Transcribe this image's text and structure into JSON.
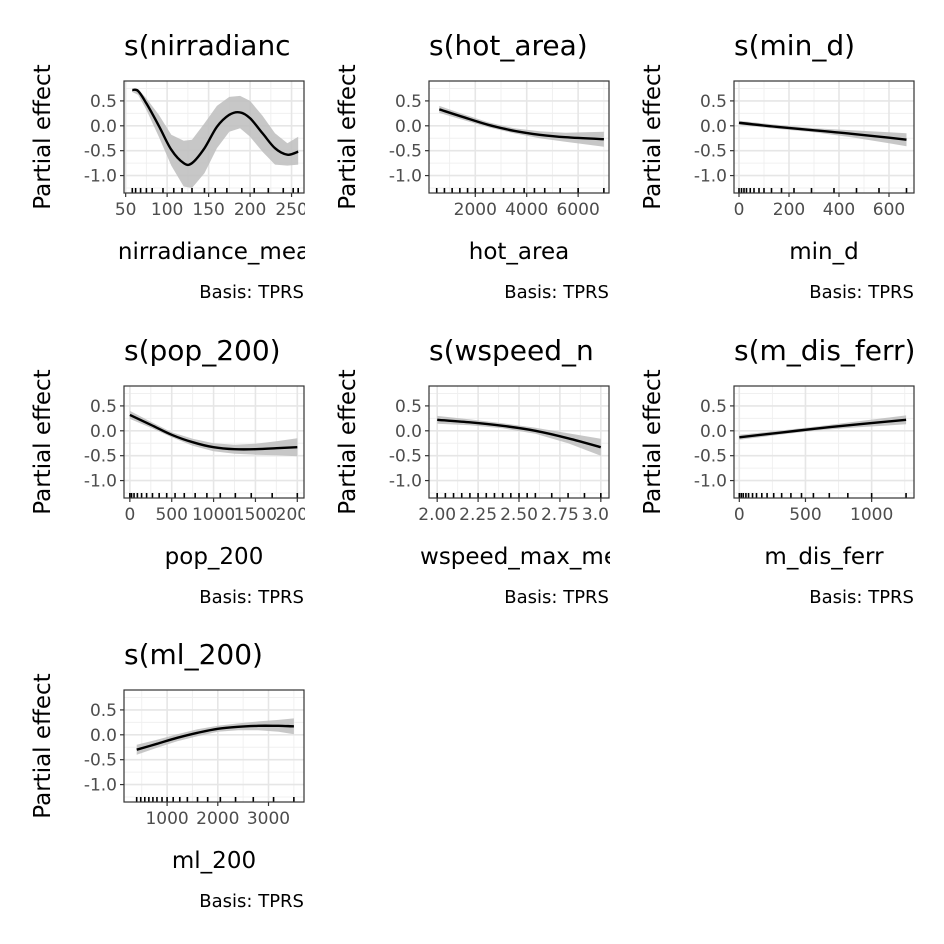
{
  "chart_data": [
    {
      "type": "line",
      "title": "s(nirradiance_mean)",
      "title_visible": "s(nirradianc",
      "xlabel": "nirradiance_mean",
      "xlabel_visible": "nirradiance_mea",
      "ylabel": "Partial effect",
      "caption": "Basis: TPRS",
      "xlim": [
        48,
        265
      ],
      "ylim": [
        -1.35,
        0.9
      ],
      "xticks": [
        50,
        100,
        150,
        200,
        250
      ],
      "xtick_labels": [
        "50",
        "100",
        "150",
        "200",
        "250"
      ],
      "yticks": [
        0.5,
        0.0,
        -0.5,
        -1.0
      ],
      "ytick_labels": [
        "0.5",
        "0.0",
        "-0.5",
        "-1.0"
      ],
      "grid": true,
      "line_color": "#000000",
      "band_color": "#bdbdbd",
      "series": [
        {
          "x": [
            58,
            65,
            75,
            90,
            105,
            120,
            130,
            145,
            160,
            175,
            188,
            200,
            215,
            230,
            245,
            258
          ],
          "y": [
            0.72,
            0.7,
            0.45,
            0.0,
            -0.48,
            -0.75,
            -0.75,
            -0.45,
            -0.02,
            0.22,
            0.27,
            0.15,
            -0.15,
            -0.45,
            -0.58,
            -0.52
          ],
          "upper": [
            0.74,
            0.74,
            0.55,
            0.22,
            -0.18,
            -0.3,
            -0.28,
            0.05,
            0.4,
            0.58,
            0.6,
            0.5,
            0.2,
            -0.15,
            -0.35,
            -0.22
          ],
          "lower": [
            0.68,
            0.62,
            0.32,
            -0.22,
            -0.8,
            -1.22,
            -1.25,
            -0.95,
            -0.45,
            -0.12,
            -0.05,
            -0.22,
            -0.52,
            -0.78,
            -0.8,
            -0.78
          ]
        }
      ],
      "rug": [
        58,
        62,
        68,
        75,
        82,
        95,
        108,
        118,
        130,
        145,
        158,
        172,
        190,
        205,
        222,
        240,
        252,
        258
      ]
    },
    {
      "type": "line",
      "title": "s(hot_area)",
      "title_visible": "s(hot_area)",
      "xlabel": "hot_area",
      "xlabel_visible": "hot_area",
      "ylabel": "Partial effect",
      "caption": "Basis: TPRS",
      "xlim": [
        200,
        7200
      ],
      "ylim": [
        -1.35,
        0.9
      ],
      "xticks": [
        2000,
        4000,
        6000
      ],
      "xtick_labels": [
        "2000",
        "4000",
        "6000"
      ],
      "yticks": [
        0.5,
        0.0,
        -0.5,
        -1.0
      ],
      "ytick_labels": [
        "0.5",
        "0.0",
        "-0.5",
        "-1.0"
      ],
      "grid": true,
      "line_color": "#000000",
      "band_color": "#bdbdbd",
      "series": [
        {
          "x": [
            600,
            1500,
            2500,
            3500,
            4500,
            5500,
            7000
          ],
          "y": [
            0.33,
            0.18,
            0.02,
            -0.1,
            -0.18,
            -0.23,
            -0.27
          ],
          "upper": [
            0.4,
            0.24,
            0.07,
            -0.05,
            -0.11,
            -0.14,
            -0.12
          ],
          "lower": [
            0.26,
            0.12,
            -0.03,
            -0.15,
            -0.25,
            -0.32,
            -0.42
          ]
        }
      ],
      "rug": [
        500,
        800,
        1100,
        1400,
        1700,
        2000,
        2300,
        2700,
        3100,
        3500,
        3900,
        4300,
        4700,
        5300,
        6000,
        7000
      ]
    },
    {
      "type": "line",
      "title": "s(min_d)",
      "title_visible": "s(min_d)",
      "xlabel": "min_d",
      "xlabel_visible": "min_d",
      "ylabel": "Partial effect",
      "caption": "Basis: TPRS",
      "xlim": [
        -20,
        700
      ],
      "ylim": [
        -1.35,
        0.9
      ],
      "xticks": [
        0,
        200,
        400,
        600
      ],
      "xtick_labels": [
        "0",
        "200",
        "400",
        "600"
      ],
      "yticks": [
        0.5,
        0.0,
        -0.5,
        -1.0
      ],
      "ytick_labels": [
        "0.5",
        "0.0",
        "-0.5",
        "-1.0"
      ],
      "grid": true,
      "line_color": "#000000",
      "band_color": "#bdbdbd",
      "series": [
        {
          "x": [
            0,
            150,
            300,
            450,
            600,
            670
          ],
          "y": [
            0.06,
            -0.02,
            -0.09,
            -0.16,
            -0.24,
            -0.28
          ],
          "upper": [
            0.1,
            0.02,
            -0.05,
            -0.09,
            -0.13,
            -0.15
          ],
          "lower": [
            0.02,
            -0.06,
            -0.13,
            -0.23,
            -0.35,
            -0.41
          ]
        }
      ],
      "rug": [
        0,
        10,
        20,
        30,
        45,
        60,
        80,
        100,
        130,
        170,
        220,
        290,
        380,
        470,
        560,
        670
      ]
    },
    {
      "type": "line",
      "title": "s(pop_200)",
      "title_visible": "s(pop_200)",
      "xlabel": "pop_200",
      "xlabel_visible": "pop_200",
      "ylabel": "Partial effect",
      "caption": "Basis: TPRS",
      "xlim": [
        -70,
        2080
      ],
      "ylim": [
        -1.35,
        0.9
      ],
      "xticks": [
        0,
        500,
        1000,
        1500,
        2000
      ],
      "xtick_labels": [
        "0",
        "500",
        "1000",
        "1500",
        "2000"
      ],
      "yticks": [
        0.5,
        0.0,
        -0.5,
        -1.0
      ],
      "ytick_labels": [
        "0.5",
        "0.0",
        "-0.5",
        "-1.0"
      ],
      "grid": true,
      "line_color": "#000000",
      "band_color": "#bdbdbd",
      "series": [
        {
          "x": [
            0,
            250,
            500,
            750,
            1000,
            1250,
            1500,
            1750,
            2000
          ],
          "y": [
            0.32,
            0.12,
            -0.08,
            -0.23,
            -0.33,
            -0.37,
            -0.37,
            -0.35,
            -0.33
          ],
          "upper": [
            0.4,
            0.18,
            -0.03,
            -0.16,
            -0.25,
            -0.28,
            -0.26,
            -0.21,
            -0.15
          ],
          "lower": [
            0.24,
            0.06,
            -0.13,
            -0.3,
            -0.41,
            -0.46,
            -0.48,
            -0.49,
            -0.51
          ]
        }
      ],
      "rug": [
        0,
        20,
        50,
        90,
        140,
        200,
        270,
        350,
        440,
        540,
        650,
        780,
        920,
        1080,
        1260,
        1450,
        1700,
        2000
      ]
    },
    {
      "type": "line",
      "title": "s(wspeed_max_mean)",
      "title_visible": "s(wspeed_n",
      "xlabel": "wspeed_max_mean",
      "xlabel_visible": "wspeed_max_me",
      "ylabel": "Partial effect",
      "caption": "Basis: TPRS",
      "xlim": [
        1.95,
        3.05
      ],
      "ylim": [
        -1.35,
        0.9
      ],
      "xticks": [
        2.0,
        2.25,
        2.5,
        2.75,
        3.0
      ],
      "xtick_labels": [
        "2.00",
        "2.25",
        "2.50",
        "2.75",
        "3.00"
      ],
      "yticks": [
        0.5,
        0.0,
        -0.5,
        -1.0
      ],
      "ytick_labels": [
        "0.5",
        "0.0",
        "-0.5",
        "-1.0"
      ],
      "grid": true,
      "line_color": "#000000",
      "band_color": "#bdbdbd",
      "series": [
        {
          "x": [
            2.0,
            2.2,
            2.4,
            2.6,
            2.8,
            3.0
          ],
          "y": [
            0.22,
            0.17,
            0.1,
            0.0,
            -0.15,
            -0.33
          ],
          "upper": [
            0.3,
            0.23,
            0.15,
            0.06,
            -0.05,
            -0.16
          ],
          "lower": [
            0.14,
            0.11,
            0.05,
            -0.06,
            -0.25,
            -0.5
          ]
        }
      ],
      "rug": [
        2.0,
        2.05,
        2.1,
        2.15,
        2.2,
        2.25,
        2.3,
        2.35,
        2.4,
        2.45,
        2.5,
        2.55,
        2.6,
        2.7,
        2.8,
        2.9,
        3.0
      ]
    },
    {
      "type": "line",
      "title": "s(m_dis_ferr)",
      "title_visible": "s(m_dis_ferr)",
      "xlabel": "m_dis_ferr",
      "xlabel_visible": "m_dis_ferr",
      "ylabel": "Partial effect",
      "caption": "Basis: TPRS",
      "xlim": [
        -40,
        1320
      ],
      "ylim": [
        -1.35,
        0.9
      ],
      "xticks": [
        0,
        500,
        1000
      ],
      "xtick_labels": [
        "0",
        "500",
        "1000"
      ],
      "yticks": [
        0.5,
        0.0,
        -0.5,
        -1.0
      ],
      "ytick_labels": [
        "0.5",
        "0.0",
        "-0.5",
        "-1.0"
      ],
      "grid": true,
      "line_color": "#000000",
      "band_color": "#bdbdbd",
      "series": [
        {
          "x": [
            0,
            300,
            600,
            900,
            1260
          ],
          "y": [
            -0.13,
            -0.04,
            0.05,
            0.13,
            0.22
          ],
          "upper": [
            -0.08,
            0.0,
            0.09,
            0.19,
            0.31
          ],
          "lower": [
            -0.18,
            -0.08,
            0.01,
            0.07,
            0.13
          ]
        }
      ],
      "rug": [
        0,
        15,
        30,
        50,
        70,
        100,
        130,
        170,
        210,
        260,
        320,
        390,
        470,
        560,
        680,
        820,
        1000,
        1260
      ]
    },
    {
      "type": "line",
      "title": "s(ml_200)",
      "title_visible": "s(ml_200)",
      "xlabel": "ml_200",
      "xlabel_visible": "ml_200",
      "ylabel": "Partial effect",
      "caption": "Basis: TPRS",
      "xlim": [
        150,
        3700
      ],
      "ylim": [
        -1.35,
        0.9
      ],
      "xticks": [
        1000,
        2000,
        3000
      ],
      "xtick_labels": [
        "1000",
        "2000",
        "3000"
      ],
      "yticks": [
        0.5,
        0.0,
        -0.5,
        -1.0
      ],
      "ytick_labels": [
        "0.5",
        "0.0",
        "-0.5",
        "-1.0"
      ],
      "grid": true,
      "line_color": "#000000",
      "band_color": "#bdbdbd",
      "series": [
        {
          "x": [
            400,
            800,
            1200,
            1600,
            2000,
            2400,
            2800,
            3200,
            3500
          ],
          "y": [
            -0.3,
            -0.18,
            -0.06,
            0.04,
            0.12,
            0.16,
            0.18,
            0.18,
            0.17
          ],
          "upper": [
            -0.2,
            -0.1,
            0.01,
            0.11,
            0.18,
            0.23,
            0.27,
            0.3,
            0.33
          ],
          "lower": [
            -0.4,
            -0.26,
            -0.13,
            -0.03,
            0.06,
            0.09,
            0.09,
            0.06,
            0.01
          ]
        }
      ],
      "rug": [
        400,
        480,
        560,
        640,
        720,
        800,
        900,
        1000,
        1120,
        1250,
        1400,
        1600,
        1800,
        2050,
        2350,
        2700,
        3100,
        3500
      ]
    }
  ]
}
